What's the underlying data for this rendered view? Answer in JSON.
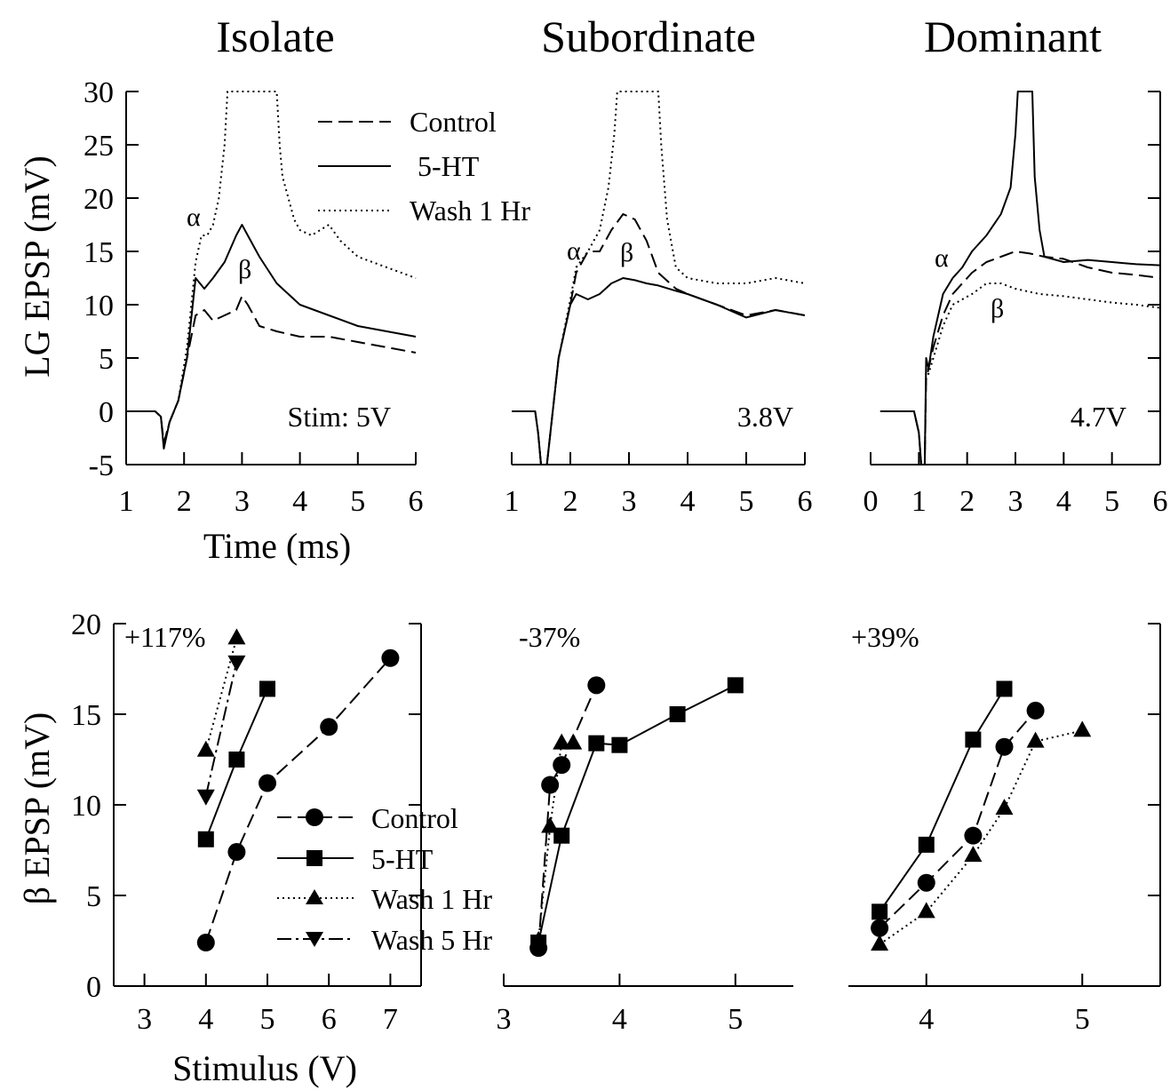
{
  "figure": {
    "titles": [
      "Isolate",
      "Subordinate",
      "Dominant"
    ],
    "top_ylabel": "LG EPSP (mV)",
    "top_xlabel": "Time (ms)",
    "bottom_ylabel": "β EPSP (mV)",
    "bottom_xlabel": "Stimulus (V)",
    "top_legend": [
      "Control",
      "5-HT",
      "Wash 1 Hr"
    ],
    "bottom_legend": [
      "Control",
      "5-HT",
      "Wash 1 Hr",
      "Wash 5 Hr"
    ],
    "stim_labels": [
      "Stim: 5V",
      "3.8V",
      "4.7V"
    ],
    "percent_labels": [
      "+117%",
      "-37%",
      "+39%"
    ],
    "alpha": "α",
    "beta": "β"
  },
  "chart_data": [
    {
      "type": "line",
      "panel": "Isolate traces",
      "title": "Isolate",
      "xlabel": "Time (ms)",
      "ylabel": "LG EPSP (mV)",
      "xlim": [
        1,
        6
      ],
      "ylim": [
        -5,
        30
      ],
      "xticks": [
        1,
        2,
        3,
        4,
        5,
        6
      ],
      "yticks": [
        -5,
        0,
        5,
        10,
        15,
        20,
        25,
        30
      ],
      "annotation": "Stim: 5V",
      "series": [
        {
          "name": "Control",
          "style": "dashed",
          "x": [
            1,
            1.5,
            1.6,
            1.65,
            1.75,
            1.9,
            2.05,
            2.2,
            2.35,
            2.5,
            2.7,
            2.9,
            3.0,
            3.1,
            3.3,
            3.6,
            4.0,
            4.5,
            5.0,
            5.5,
            6.0
          ],
          "y": [
            0,
            0,
            -0.5,
            -3,
            -1,
            1,
            5,
            9,
            9.5,
            8.5,
            9,
            9.5,
            10.8,
            10,
            8,
            7.5,
            7,
            7,
            6.5,
            6,
            5.5
          ]
        },
        {
          "name": "5-HT",
          "style": "solid",
          "x": [
            1,
            1.5,
            1.6,
            1.65,
            1.75,
            1.9,
            2.05,
            2.2,
            2.35,
            2.5,
            2.7,
            2.9,
            3.0,
            3.1,
            3.3,
            3.6,
            4.0,
            4.5,
            5.0,
            5.5,
            6.0
          ],
          "y": [
            0,
            0,
            -0.5,
            -3.5,
            -1,
            1,
            5,
            12.5,
            11.5,
            12.5,
            14,
            16.5,
            17.5,
            16.5,
            14.5,
            12,
            10,
            9,
            8,
            7.5,
            7
          ]
        },
        {
          "name": "Wash 1 Hr",
          "style": "dotted",
          "x": [
            1,
            1.5,
            1.6,
            1.65,
            1.75,
            1.9,
            2.05,
            2.2,
            2.3,
            2.4,
            2.5,
            2.6,
            2.7,
            2.75,
            3.6,
            3.65,
            3.7,
            3.8,
            3.9,
            4.0,
            4.2,
            4.35,
            4.5,
            4.7,
            5.0,
            5.5,
            6.0
          ],
          "y": [
            0,
            0,
            -0.5,
            -3,
            -1,
            1,
            6,
            14,
            16.5,
            16.5,
            17.5,
            20,
            25,
            30,
            30,
            25,
            22,
            20,
            18,
            17,
            16.5,
            17,
            17.5,
            16,
            14.5,
            13.5,
            12.5
          ]
        }
      ]
    },
    {
      "type": "line",
      "panel": "Subordinate traces",
      "title": "Subordinate",
      "xlim": [
        1,
        6
      ],
      "ylim": [
        -5,
        30
      ],
      "xticks": [
        1,
        2,
        3,
        4,
        5,
        6
      ],
      "annotation": "3.8V",
      "series": [
        {
          "name": "Control",
          "style": "dashed",
          "x": [
            1,
            1.4,
            1.45,
            1.5,
            1.6,
            1.7,
            1.8,
            2.0,
            2.1,
            2.3,
            2.5,
            2.7,
            2.9,
            3.1,
            3.3,
            3.5,
            3.8,
            4.0,
            4.5,
            5.0,
            5.5,
            6.0
          ],
          "y": [
            0,
            0,
            -2,
            -5,
            -5,
            0,
            5,
            10,
            13,
            15,
            15,
            17,
            18.5,
            18,
            16,
            13,
            11.5,
            11,
            10,
            9,
            9.5,
            9
          ]
        },
        {
          "name": "5-HT",
          "style": "solid",
          "x": [
            1,
            1.4,
            1.45,
            1.5,
            1.6,
            1.7,
            1.8,
            2.0,
            2.1,
            2.3,
            2.5,
            2.7,
            2.9,
            3.1,
            3.3,
            3.5,
            3.8,
            4.0,
            4.5,
            5.0,
            5.5,
            6.0
          ],
          "y": [
            0,
            0,
            -2,
            -5,
            -5,
            0,
            5,
            10,
            11,
            10.5,
            11,
            12,
            12.5,
            12.3,
            12,
            11.8,
            11.3,
            11,
            10,
            8.8,
            9.5,
            9
          ]
        },
        {
          "name": "Wash 1 Hr",
          "style": "dotted",
          "x": [
            1,
            1.4,
            1.45,
            1.5,
            1.6,
            1.7,
            1.8,
            2.0,
            2.1,
            2.3,
            2.5,
            2.65,
            2.75,
            2.8,
            3.5,
            3.55,
            3.65,
            3.8,
            4.0,
            4.5,
            5.0,
            5.5,
            6.0
          ],
          "y": [
            0,
            0,
            -2,
            -5,
            -5,
            0,
            5,
            10.5,
            13.5,
            15,
            17,
            21,
            26,
            30,
            30,
            25,
            18,
            13.5,
            12.5,
            12,
            12,
            12.5,
            12
          ]
        }
      ]
    },
    {
      "type": "line",
      "panel": "Dominant traces",
      "title": "Dominant",
      "xlim": [
        0,
        6
      ],
      "ylim": [
        -5,
        30
      ],
      "xticks": [
        0,
        1,
        2,
        3,
        4,
        5,
        6
      ],
      "annotation": "4.7V",
      "series": [
        {
          "name": "Control",
          "style": "dashed",
          "x": [
            0.2,
            0.9,
            1.0,
            1.05,
            1.12,
            1.15,
            1.2,
            1.3,
            1.5,
            1.7,
            1.9,
            2.1,
            2.4,
            2.7,
            3.0,
            3.3,
            3.6,
            4.0,
            4.5,
            5.0,
            5.5,
            6.0
          ],
          "y": [
            0,
            0,
            -2,
            -5,
            -5,
            3,
            4,
            6,
            9,
            11,
            12,
            13,
            14,
            14.5,
            15,
            14.8,
            14.5,
            14.3,
            13.5,
            13,
            12.8,
            12.5
          ]
        },
        {
          "name": "5-HT",
          "style": "solid",
          "x": [
            0.2,
            0.9,
            1.0,
            1.05,
            1.12,
            1.15,
            1.2,
            1.3,
            1.5,
            1.7,
            1.9,
            2.1,
            2.4,
            2.7,
            2.9,
            3.0,
            3.05,
            3.35,
            3.4,
            3.5,
            3.6,
            4.0,
            4.5,
            5.0,
            5.5,
            6.0
          ],
          "y": [
            0,
            0,
            -2,
            -5,
            -5,
            5,
            4,
            7,
            11,
            12.5,
            13.5,
            15,
            16.5,
            18.5,
            21,
            26,
            30,
            30,
            22,
            17,
            14.5,
            14,
            14.2,
            14,
            13.8,
            13.7
          ]
        },
        {
          "name": "Wash 1 Hr",
          "style": "dotted",
          "x": [
            0.2,
            0.9,
            1.0,
            1.05,
            1.12,
            1.15,
            1.2,
            1.3,
            1.5,
            1.7,
            1.9,
            2.1,
            2.4,
            2.7,
            3.0,
            3.5,
            4.0,
            4.5,
            5.0,
            5.5,
            6.0
          ],
          "y": [
            0,
            0,
            -2,
            -5,
            -5,
            4,
            3.5,
            5,
            8,
            10,
            10.5,
            11,
            12,
            12,
            11.5,
            11,
            10.8,
            10.5,
            10.2,
            10,
            9.7
          ]
        }
      ]
    },
    {
      "type": "line",
      "panel": "Isolate input-output",
      "xlabel": "Stimulus (V)",
      "ylabel": "β EPSP (mV)",
      "xlim": [
        2.5,
        7.5
      ],
      "ylim": [
        0,
        20
      ],
      "xticks": [
        3,
        4,
        5,
        6,
        7
      ],
      "yticks": [
        0,
        5,
        10,
        15,
        20
      ],
      "annotation": "+117%",
      "series": [
        {
          "name": "Control",
          "marker": "circle",
          "style": "dashed",
          "x": [
            4,
            4.5,
            5,
            6,
            7
          ],
          "y": [
            2.4,
            7.4,
            11.2,
            14.3,
            18.1
          ]
        },
        {
          "name": "5-HT",
          "marker": "square",
          "style": "solid",
          "x": [
            4,
            4.5,
            5
          ],
          "y": [
            8.1,
            12.5,
            16.4
          ]
        },
        {
          "name": "Wash 1 Hr",
          "marker": "triangle-up",
          "style": "dotted",
          "x": [
            4,
            4.5
          ],
          "y": [
            13.0,
            19.2
          ]
        },
        {
          "name": "Wash 5 Hr",
          "marker": "triangle-down",
          "style": "dashdot",
          "x": [
            4,
            4.5
          ],
          "y": [
            10.5,
            17.9
          ]
        }
      ]
    },
    {
      "type": "line",
      "panel": "Subordinate input-output",
      "xlim": [
        3,
        5.5
      ],
      "ylim": [
        0,
        20
      ],
      "xticks": [
        3,
        4,
        5
      ],
      "annotation": "-37%",
      "series": [
        {
          "name": "Control",
          "marker": "circle",
          "style": "dashed",
          "x": [
            3.3,
            3.4,
            3.5,
            3.8
          ],
          "y": [
            2.1,
            11.1,
            12.2,
            16.6
          ]
        },
        {
          "name": "5-HT",
          "marker": "square",
          "style": "solid",
          "x": [
            3.3,
            3.5,
            3.8,
            4.0,
            4.5,
            5.0
          ],
          "y": [
            2.4,
            8.3,
            13.4,
            13.3,
            15.0,
            16.6
          ]
        },
        {
          "name": "Wash 1 Hr",
          "marker": "triangle-up",
          "style": "dotted",
          "x": [
            3.3,
            3.4,
            3.5,
            3.6
          ],
          "y": [
            2.5,
            8.8,
            13.4,
            13.4
          ]
        }
      ]
    },
    {
      "type": "line",
      "panel": "Dominant input-output",
      "xlim": [
        3.5,
        5.5
      ],
      "ylim": [
        0,
        20
      ],
      "xticks": [
        4,
        5
      ],
      "annotation": "+39%",
      "series": [
        {
          "name": "Control",
          "marker": "circle",
          "style": "dashed",
          "x": [
            3.7,
            4.0,
            4.3,
            4.5,
            4.7
          ],
          "y": [
            3.2,
            5.7,
            8.3,
            13.2,
            15.2
          ]
        },
        {
          "name": "5-HT",
          "marker": "square",
          "style": "solid",
          "x": [
            3.7,
            4.0,
            4.3,
            4.5
          ],
          "y": [
            4.1,
            7.8,
            13.6,
            16.4
          ]
        },
        {
          "name": "Wash 1 Hr",
          "marker": "triangle-up",
          "style": "dotted",
          "x": [
            3.7,
            4.0,
            4.3,
            4.5,
            4.7,
            5.0
          ],
          "y": [
            2.3,
            4.1,
            7.2,
            9.8,
            13.5,
            14.1
          ]
        }
      ]
    }
  ]
}
